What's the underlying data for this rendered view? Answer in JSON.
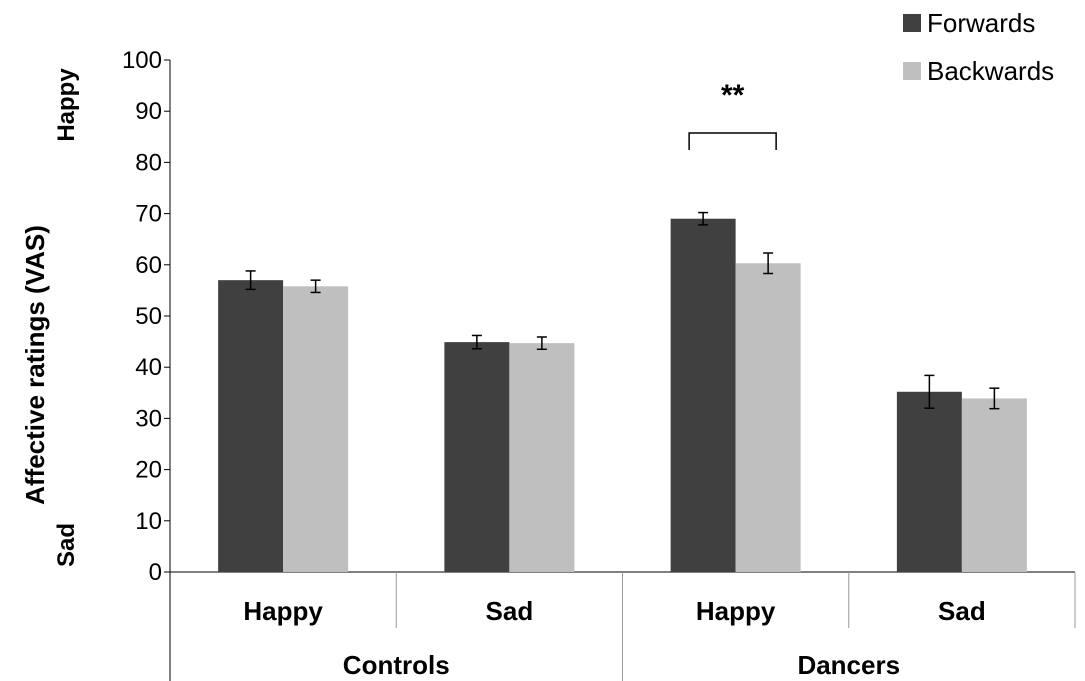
{
  "chart_data": {
    "type": "bar",
    "ylabel": "Affective ratings (VAS)",
    "y_anchor_top": "Happy",
    "y_anchor_bottom": "Sad",
    "ylim": [
      0,
      100
    ],
    "yticks": [
      0,
      10,
      20,
      30,
      40,
      50,
      60,
      70,
      80,
      90,
      100
    ],
    "groups": [
      {
        "label": "Controls",
        "categories": [
          "Happy",
          "Sad"
        ]
      },
      {
        "label": "Dancers",
        "categories": [
          "Happy",
          "Sad"
        ]
      }
    ],
    "categories": [
      "Happy",
      "Sad",
      "Happy",
      "Sad"
    ],
    "series": [
      {
        "name": "Forwards",
        "color": "#404040",
        "values": [
          57.0,
          44.9,
          69.0,
          35.2
        ],
        "errors": [
          1.8,
          1.3,
          1.2,
          3.2
        ]
      },
      {
        "name": "Backwards",
        "color": "#bfbfbf",
        "values": [
          55.8,
          44.7,
          60.3,
          33.9
        ],
        "errors": [
          1.2,
          1.2,
          2.0,
          2.0
        ]
      }
    ],
    "legend": {
      "position": "top-right"
    },
    "grid": false,
    "annotations": [
      {
        "text": "**",
        "category_index": 2,
        "type": "significance-bracket"
      }
    ]
  }
}
